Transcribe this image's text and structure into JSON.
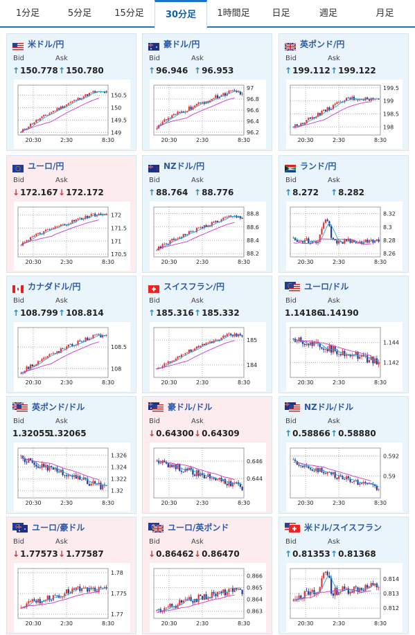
{
  "tabs": [
    {
      "label": "1分足",
      "active": false
    },
    {
      "label": "5分足",
      "active": false
    },
    {
      "label": "15分足",
      "active": false
    },
    {
      "label": "30分足",
      "active": true
    },
    {
      "label": "1時間足",
      "active": false
    },
    {
      "label": "日足",
      "active": false
    },
    {
      "label": "週足",
      "active": false
    },
    {
      "label": "月足",
      "active": false
    }
  ],
  "common": {
    "bid_label": "Bid",
    "ask_label": "Ask",
    "x_ticks": [
      "20:30",
      "2:30",
      "8:30"
    ]
  },
  "colors": {
    "up_arrow": "#1a8cd0",
    "down_arrow": "#d9342b",
    "name": "#2d5aa8",
    "card_up": "#eaf4fb",
    "card_down": "#fdecee",
    "ma1": "#20a8d8",
    "ma2": "#cc33cc",
    "candle_up": "#e63333",
    "candle_down": "#1d3a9c"
  },
  "cards": [
    {
      "name": "米ドル/円",
      "flag": "us",
      "dir": "up",
      "bid": "150.778",
      "ask": "150.780",
      "ticks": [
        "150.5",
        "150",
        "149.5",
        "149"
      ],
      "chart_data": {
        "type": "candlestick",
        "ylim": [
          148.9,
          150.9
        ],
        "start": 149.0,
        "end": 150.62,
        "shape": "rise",
        "noise": 0.06
      }
    },
    {
      "name": "豪ドル/円",
      "flag": "au",
      "dir": "up",
      "bid": "96.946",
      "ask": "96.953",
      "ticks": [
        "97",
        "96.8",
        "96.6",
        "96.4",
        "96.2"
      ],
      "chart_data": {
        "type": "candlestick",
        "ylim": [
          96.15,
          97.05
        ],
        "start": 96.3,
        "end": 96.92,
        "shape": "rise",
        "noise": 0.04
      }
    },
    {
      "name": "英ポンド/円",
      "flag": "gb",
      "dir": "up",
      "bid": "199.112",
      "ask": "199.122",
      "ticks": [
        "199.5",
        "199",
        "198.5",
        "198"
      ],
      "chart_data": {
        "type": "candlestick",
        "ylim": [
          197.7,
          199.6
        ],
        "start": 198.0,
        "end": 199.05,
        "shape": "risehump",
        "noise": 0.08
      }
    },
    {
      "name": "ユーロ/円",
      "flag": "eu",
      "dir": "down",
      "bid": "172.167",
      "ask": "172.172",
      "ticks": [
        "172",
        "171.5",
        "171",
        "170.5"
      ],
      "chart_data": {
        "type": "candlestick",
        "ylim": [
          170.4,
          172.3
        ],
        "start": 170.9,
        "end": 172.0,
        "shape": "rise",
        "noise": 0.07
      }
    },
    {
      "name": "NZドル/円",
      "flag": "nz",
      "dir": "up",
      "bid": "88.764",
      "ask": "88.776",
      "ticks": [
        "88.8",
        "88.6",
        "88.4",
        "88.2"
      ],
      "chart_data": {
        "type": "candlestick",
        "ylim": [
          88.15,
          88.9
        ],
        "start": 88.25,
        "end": 88.75,
        "shape": "rise",
        "noise": 0.03
      }
    },
    {
      "name": "ランド/円",
      "flag": "za",
      "dir": "up",
      "bid": "8.272",
      "ask": "8.282",
      "ticks": [
        "8.32",
        "8.3",
        "8.28",
        "8.26"
      ],
      "chart_data": {
        "type": "candlestick",
        "ylim": [
          8.255,
          8.33
        ],
        "start": 8.28,
        "end": 8.278,
        "shape": "spike",
        "noise": 0.004
      }
    },
    {
      "name": "カナダドル/円",
      "flag": "ca",
      "dir": "up",
      "bid": "108.799",
      "ask": "108.814",
      "ticks": [
        "108.5",
        "108"
      ],
      "chart_data": {
        "type": "candlestick",
        "ylim": [
          107.8,
          108.95
        ],
        "start": 107.9,
        "end": 108.75,
        "shape": "rise",
        "noise": 0.05
      }
    },
    {
      "name": "スイスフラン/円",
      "flag": "ch",
      "dir": "up",
      "bid": "185.316",
      "ask": "185.332",
      "ticks": [
        "185",
        "184"
      ],
      "chart_data": {
        "type": "candlestick",
        "ylim": [
          183.5,
          185.5
        ],
        "start": 183.8,
        "end": 185.2,
        "shape": "rise",
        "noise": 0.08
      }
    },
    {
      "name": "ユーロ/ドル",
      "flag": "euus",
      "dir": "none",
      "bid": "1.14186",
      "ask": "1.14190",
      "ticks": [
        "1.144",
        "1.142"
      ],
      "chart_data": {
        "type": "candlestick",
        "ylim": [
          1.1405,
          1.1455
        ],
        "start": 1.1445,
        "end": 1.1421,
        "shape": "fall",
        "noise": 0.0004
      }
    },
    {
      "name": "英ポンド/ドル",
      "flag": "gbus",
      "dir": "none",
      "bid": "1.32055",
      "ask": "1.32065",
      "ticks": [
        "1.326",
        "1.324",
        "1.322",
        "1.32"
      ],
      "chart_data": {
        "type": "candlestick",
        "ylim": [
          1.3188,
          1.3272
        ],
        "start": 1.3255,
        "end": 1.3205,
        "shape": "fall",
        "noise": 0.0006
      }
    },
    {
      "name": "豪ドル/ドル",
      "flag": "auus",
      "dir": "down",
      "bid": "0.64300",
      "ask": "0.64309",
      "ticks": [
        "0.646",
        "0.644"
      ],
      "chart_data": {
        "type": "candlestick",
        "ylim": [
          0.6418,
          0.6475
        ],
        "start": 0.6462,
        "end": 0.643,
        "shape": "fall",
        "noise": 0.0004
      }
    },
    {
      "name": "NZドル/ドル",
      "flag": "nzus",
      "dir": "up",
      "bid": "0.58866",
      "ask": "0.58880",
      "ticks": [
        "0.592",
        "0.59"
      ],
      "chart_data": {
        "type": "candlestick",
        "ylim": [
          0.5878,
          0.5928
        ],
        "start": 0.5915,
        "end": 0.5887,
        "shape": "fall",
        "noise": 0.0003
      }
    },
    {
      "name": "ユーロ/豪ドル",
      "flag": "euau",
      "dir": "down",
      "bid": "1.77573",
      "ask": "1.77587",
      "ticks": [
        "1.78",
        "1.775",
        "1.77"
      ],
      "chart_data": {
        "type": "candlestick",
        "ylim": [
          1.769,
          1.781
        ],
        "start": 1.772,
        "end": 1.7758,
        "shape": "risehump",
        "noise": 0.0008
      }
    },
    {
      "name": "ユーロ/英ポンド",
      "flag": "eugb",
      "dir": "down",
      "bid": "0.86462",
      "ask": "0.86470",
      "ticks": [
        "0.866",
        "0.865",
        "0.864",
        "0.863"
      ],
      "chart_data": {
        "type": "candlestick",
        "ylim": [
          0.8624,
          0.8666
        ],
        "start": 0.863,
        "end": 0.8647,
        "shape": "rise",
        "noise": 0.0003
      }
    },
    {
      "name": "米ドル/スイスフラン",
      "flag": "usch",
      "dir": "up",
      "bid": "0.81353",
      "ask": "0.81368",
      "ticks": [
        "0.814",
        "0.813",
        "0.812"
      ],
      "chart_data": {
        "type": "candlestick",
        "ylim": [
          0.8113,
          0.8147
        ],
        "start": 0.8128,
        "end": 0.8135,
        "shape": "spike",
        "noise": 0.0003
      }
    }
  ]
}
